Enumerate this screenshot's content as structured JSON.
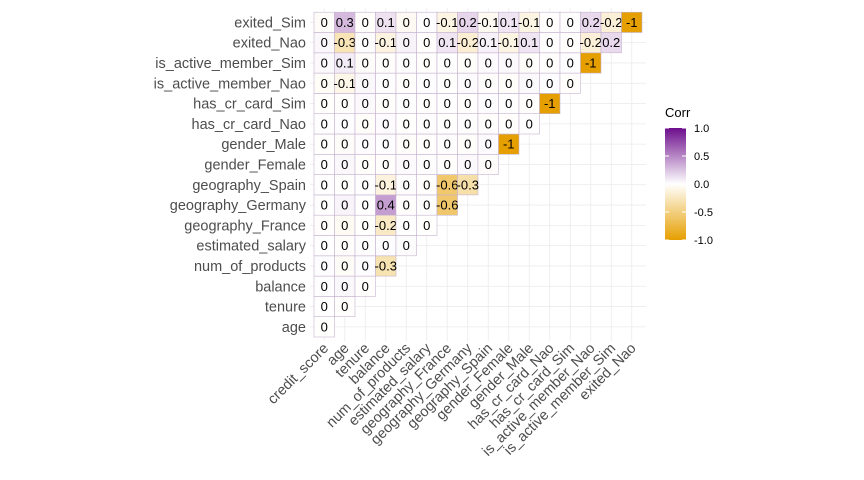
{
  "chart_data": {
    "type": "heatmap",
    "x_labels": [
      "credit_score",
      "age",
      "tenure",
      "balance",
      "num_of_products",
      "estimated_salary",
      "geography_France",
      "geography_Germany",
      "geography_Spain",
      "gender_Female",
      "gender_Male",
      "has_cr_card_Nao",
      "has_cr_card_Sim",
      "is_active_member_Nao",
      "is_active_member_Sim",
      "exited_Nao"
    ],
    "y_labels": [
      "age",
      "tenure",
      "balance",
      "num_of_products",
      "estimated_salary",
      "geography_France",
      "geography_Germany",
      "geography_Spain",
      "gender_Female",
      "gender_Male",
      "has_cr_card_Nao",
      "has_cr_card_Sim",
      "is_active_member_Nao",
      "is_active_member_Sim",
      "exited_Nao",
      "exited_Sim"
    ],
    "value_labels": [
      [
        "0"
      ],
      [
        "0",
        "0"
      ],
      [
        "0",
        "0",
        "0"
      ],
      [
        "0",
        "0",
        "0",
        "-0.3"
      ],
      [
        "0",
        "0",
        "0",
        "0",
        "0"
      ],
      [
        "0",
        "0",
        "0",
        "-0.2",
        "0",
        "0"
      ],
      [
        "0",
        "0",
        "0",
        "0.4",
        "0",
        "0",
        "-0.6"
      ],
      [
        "0",
        "0",
        "0",
        "-0.1",
        "0",
        "0",
        "-0.6",
        "-0.3"
      ],
      [
        "0",
        "0",
        "0",
        "0",
        "0",
        "0",
        "0",
        "0",
        "0"
      ],
      [
        "0",
        "0",
        "0",
        "0",
        "0",
        "0",
        "0",
        "0",
        "0",
        "-1"
      ],
      [
        "0",
        "0",
        "0",
        "0",
        "0",
        "0",
        "0",
        "0",
        "0",
        "0",
        "0"
      ],
      [
        "0",
        "0",
        "0",
        "0",
        "0",
        "0",
        "0",
        "0",
        "0",
        "0",
        "0",
        "-1"
      ],
      [
        "0",
        "-0.1",
        "0",
        "0",
        "0",
        "0",
        "0",
        "0",
        "0",
        "0",
        "0",
        "0",
        "0"
      ],
      [
        "0",
        "0.1",
        "0",
        "0",
        "0",
        "0",
        "0",
        "0",
        "0",
        "0",
        "0",
        "0",
        "0",
        "-1"
      ],
      [
        "0",
        "-0.3",
        "0",
        "-0.1",
        "0",
        "0",
        "0.1",
        "-0.2",
        "0.1",
        "-0.1",
        "0.1",
        "0",
        "0",
        "-0.2",
        "0.2"
      ],
      [
        "0",
        "0.3",
        "0",
        "0.1",
        "0",
        "0",
        "-0.1",
        "0.2",
        "-0.1",
        "0.1",
        "-0.1",
        "0",
        "0",
        "0.2",
        "-0.2",
        "-1"
      ]
    ],
    "values": [
      [
        -0.003
      ],
      [
        0.0,
        -0.01
      ],
      [
        0.006,
        0.028,
        -0.012
      ],
      [
        0.012,
        -0.031,
        0.013,
        -0.304
      ],
      [
        -0.001,
        -0.007,
        0.008,
        0.013,
        0.014
      ],
      [
        -0.009,
        -0.039,
        -0.003,
        -0.231,
        0.001,
        -0.003
      ],
      [
        0.005,
        0.047,
        0.0,
        0.401,
        -0.01,
        0.01,
        -0.58
      ],
      [
        0.005,
        -0.002,
        0.004,
        -0.135,
        0.009,
        -0.007,
        -0.575,
        -0.332
      ],
      [
        0.003,
        0.028,
        -0.015,
        -0.012,
        0.022,
        0.008,
        -0.007,
        0.025,
        -0.017
      ],
      [
        -0.003,
        -0.028,
        0.015,
        0.012,
        -0.022,
        -0.008,
        0.007,
        -0.025,
        0.017,
        -1.0
      ],
      [
        0.005,
        0.012,
        -0.023,
        0.015,
        -0.003,
        0.01,
        -0.002,
        0.01,
        -0.013,
        -0.006,
        0.006
      ],
      [
        -0.005,
        -0.012,
        0.023,
        -0.015,
        0.003,
        -0.01,
        0.002,
        -0.01,
        0.013,
        0.006,
        -0.006,
        -1.0
      ],
      [
        -0.026,
        -0.085,
        0.028,
        0.01,
        -0.01,
        0.011,
        -0.003,
        0.02,
        -0.017,
        -0.023,
        0.023,
        0.012,
        -0.012
      ],
      [
        0.026,
        0.085,
        -0.028,
        -0.01,
        0.01,
        -0.011,
        0.003,
        -0.02,
        0.017,
        0.023,
        -0.023,
        -0.012,
        0.012,
        -1.0
      ],
      [
        0.027,
        -0.285,
        0.014,
        -0.119,
        0.048,
        -0.012,
        0.105,
        -0.174,
        0.053,
        -0.107,
        0.107,
        0.007,
        -0.007,
        -0.156,
        0.156
      ],
      [
        -0.027,
        0.285,
        -0.014,
        0.119,
        -0.048,
        0.012,
        -0.105,
        0.174,
        -0.053,
        0.107,
        -0.107,
        -0.007,
        0.007,
        0.156,
        -0.156,
        -1.0
      ]
    ],
    "legend": {
      "title": "Corr",
      "ticks": [
        "1.0",
        "0.5",
        "0.0",
        "-0.5",
        "-1.0"
      ],
      "range": [
        -1,
        1
      ],
      "position": "right"
    },
    "colors": {
      "low": "#E69F00",
      "mid": "#FFFFFF",
      "high": "#6D0E8C",
      "cell_border": "#C5B3CF",
      "grid": "#EBEBEB"
    },
    "grid": true
  }
}
